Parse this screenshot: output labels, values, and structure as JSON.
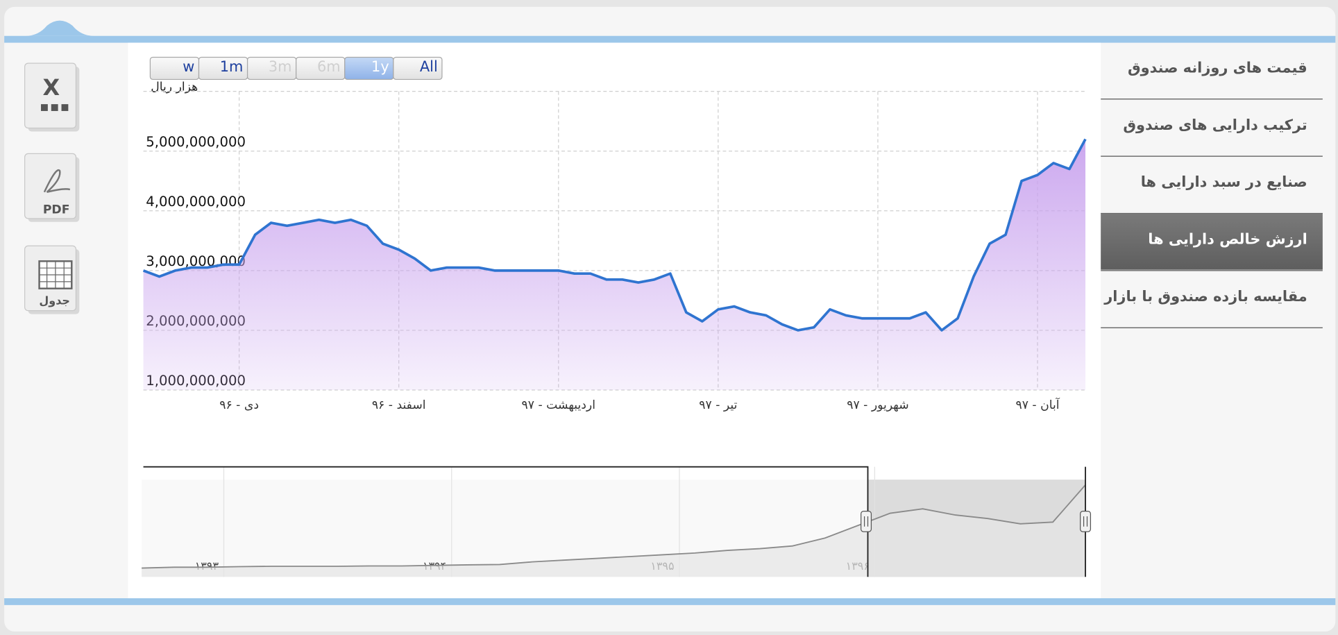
{
  "menu": {
    "items": [
      "قیمت های روزانه صندوق",
      "ترکیب دارایی های صندوق",
      "صنایع در سبد دارایی ها",
      "ارزش خالص دارایی ها",
      "مقایسه بازده صندوق با بازار"
    ],
    "active": 3
  },
  "range_selector": {
    "buttons": [
      "w",
      "1m",
      "3m",
      "6m",
      "1y",
      "All"
    ],
    "selected": 4,
    "disabled": [
      2,
      3
    ]
  },
  "export": {
    "labels": [
      "PDF",
      "جدول"
    ]
  },
  "chart_data": [
    {
      "type": "area",
      "y_label": "هزار ریال",
      "categories": [
        null,
        null,
        null,
        null,
        null,
        null,
        "دی - ۹۶",
        null,
        null,
        null,
        null,
        null,
        null,
        null,
        null,
        null,
        "اسفند - ۹۶",
        null,
        null,
        null,
        null,
        null,
        null,
        null,
        null,
        null,
        "اردیبهشت - ۹۷",
        null,
        null,
        null,
        null,
        null,
        null,
        null,
        null,
        null,
        "تیر - ۹۷",
        null,
        null,
        null,
        null,
        null,
        null,
        null,
        null,
        null,
        "شهریور - ۹۷",
        null,
        null,
        null,
        null,
        null,
        null,
        null,
        null,
        null,
        "آبان - ۹۷",
        null,
        null,
        null
      ],
      "series": [
        {
          "color": "#2f74d0",
          "fill": "#c9a3ee",
          "values": [
            3000000000,
            2900000000,
            3000000000,
            3050000000,
            3050000000,
            3100000000,
            3100000000,
            3600000000,
            3800000000,
            3750000000,
            3800000000,
            3850000000,
            3800000000,
            3850000000,
            3750000000,
            3450000000,
            3350000000,
            3200000000,
            3000000000,
            3050000000,
            3050000000,
            3050000000,
            3000000000,
            3000000000,
            3000000000,
            3000000000,
            3000000000,
            2950000000,
            2950000000,
            2850000000,
            2850000000,
            2800000000,
            2850000000,
            2950000000,
            2300000000,
            2150000000,
            2350000000,
            2400000000,
            2300000000,
            2250000000,
            2100000000,
            2000000000,
            2050000000,
            2350000000,
            2250000000,
            2200000000,
            2200000000,
            2200000000,
            2200000000,
            2300000000,
            2000000000,
            2200000000,
            2900000000,
            3450000000,
            3600000000,
            4500000000,
            4600000000,
            4800000000,
            4700000000,
            5200000000
          ]
        }
      ],
      "ylim": [
        1000000000,
        6000000000
      ],
      "yticks": [
        {
          "value": 1000000000,
          "label": "1,000,000,000"
        },
        {
          "value": 2000000000,
          "label": "2,000,000,000"
        },
        {
          "value": 3000000000,
          "label": "3,000,000,000"
        },
        {
          "value": 4000000000,
          "label": "4,000,000,000"
        },
        {
          "value": 5000000000,
          "label": "5,000,000,000"
        }
      ],
      "grid": true
    },
    {
      "type": "navigator",
      "categories": [
        null,
        null,
        "۱۳۹۳",
        null,
        null,
        null,
        null,
        null,
        null,
        "۱۳۹۴",
        null,
        null,
        null,
        null,
        null,
        null,
        "۱۳۹۵",
        null,
        null,
        null,
        null,
        null,
        "۱۳۹۶",
        null,
        null,
        null,
        null,
        null,
        null,
        null
      ],
      "values": [
        500000000,
        550000000,
        550000000,
        580000000,
        600000000,
        600000000,
        600000000,
        620000000,
        620000000,
        650000000,
        680000000,
        700000000,
        850000000,
        950000000,
        1050000000,
        1150000000,
        1250000000,
        1350000000,
        1500000000,
        1600000000,
        1750000000,
        2200000000,
        2900000000,
        3600000000,
        3850000000,
        3500000000,
        3300000000,
        3000000000,
        3100000000,
        5200000000
      ],
      "color": "#8a8a8a",
      "ylim": [
        0,
        5500000000
      ]
    }
  ]
}
